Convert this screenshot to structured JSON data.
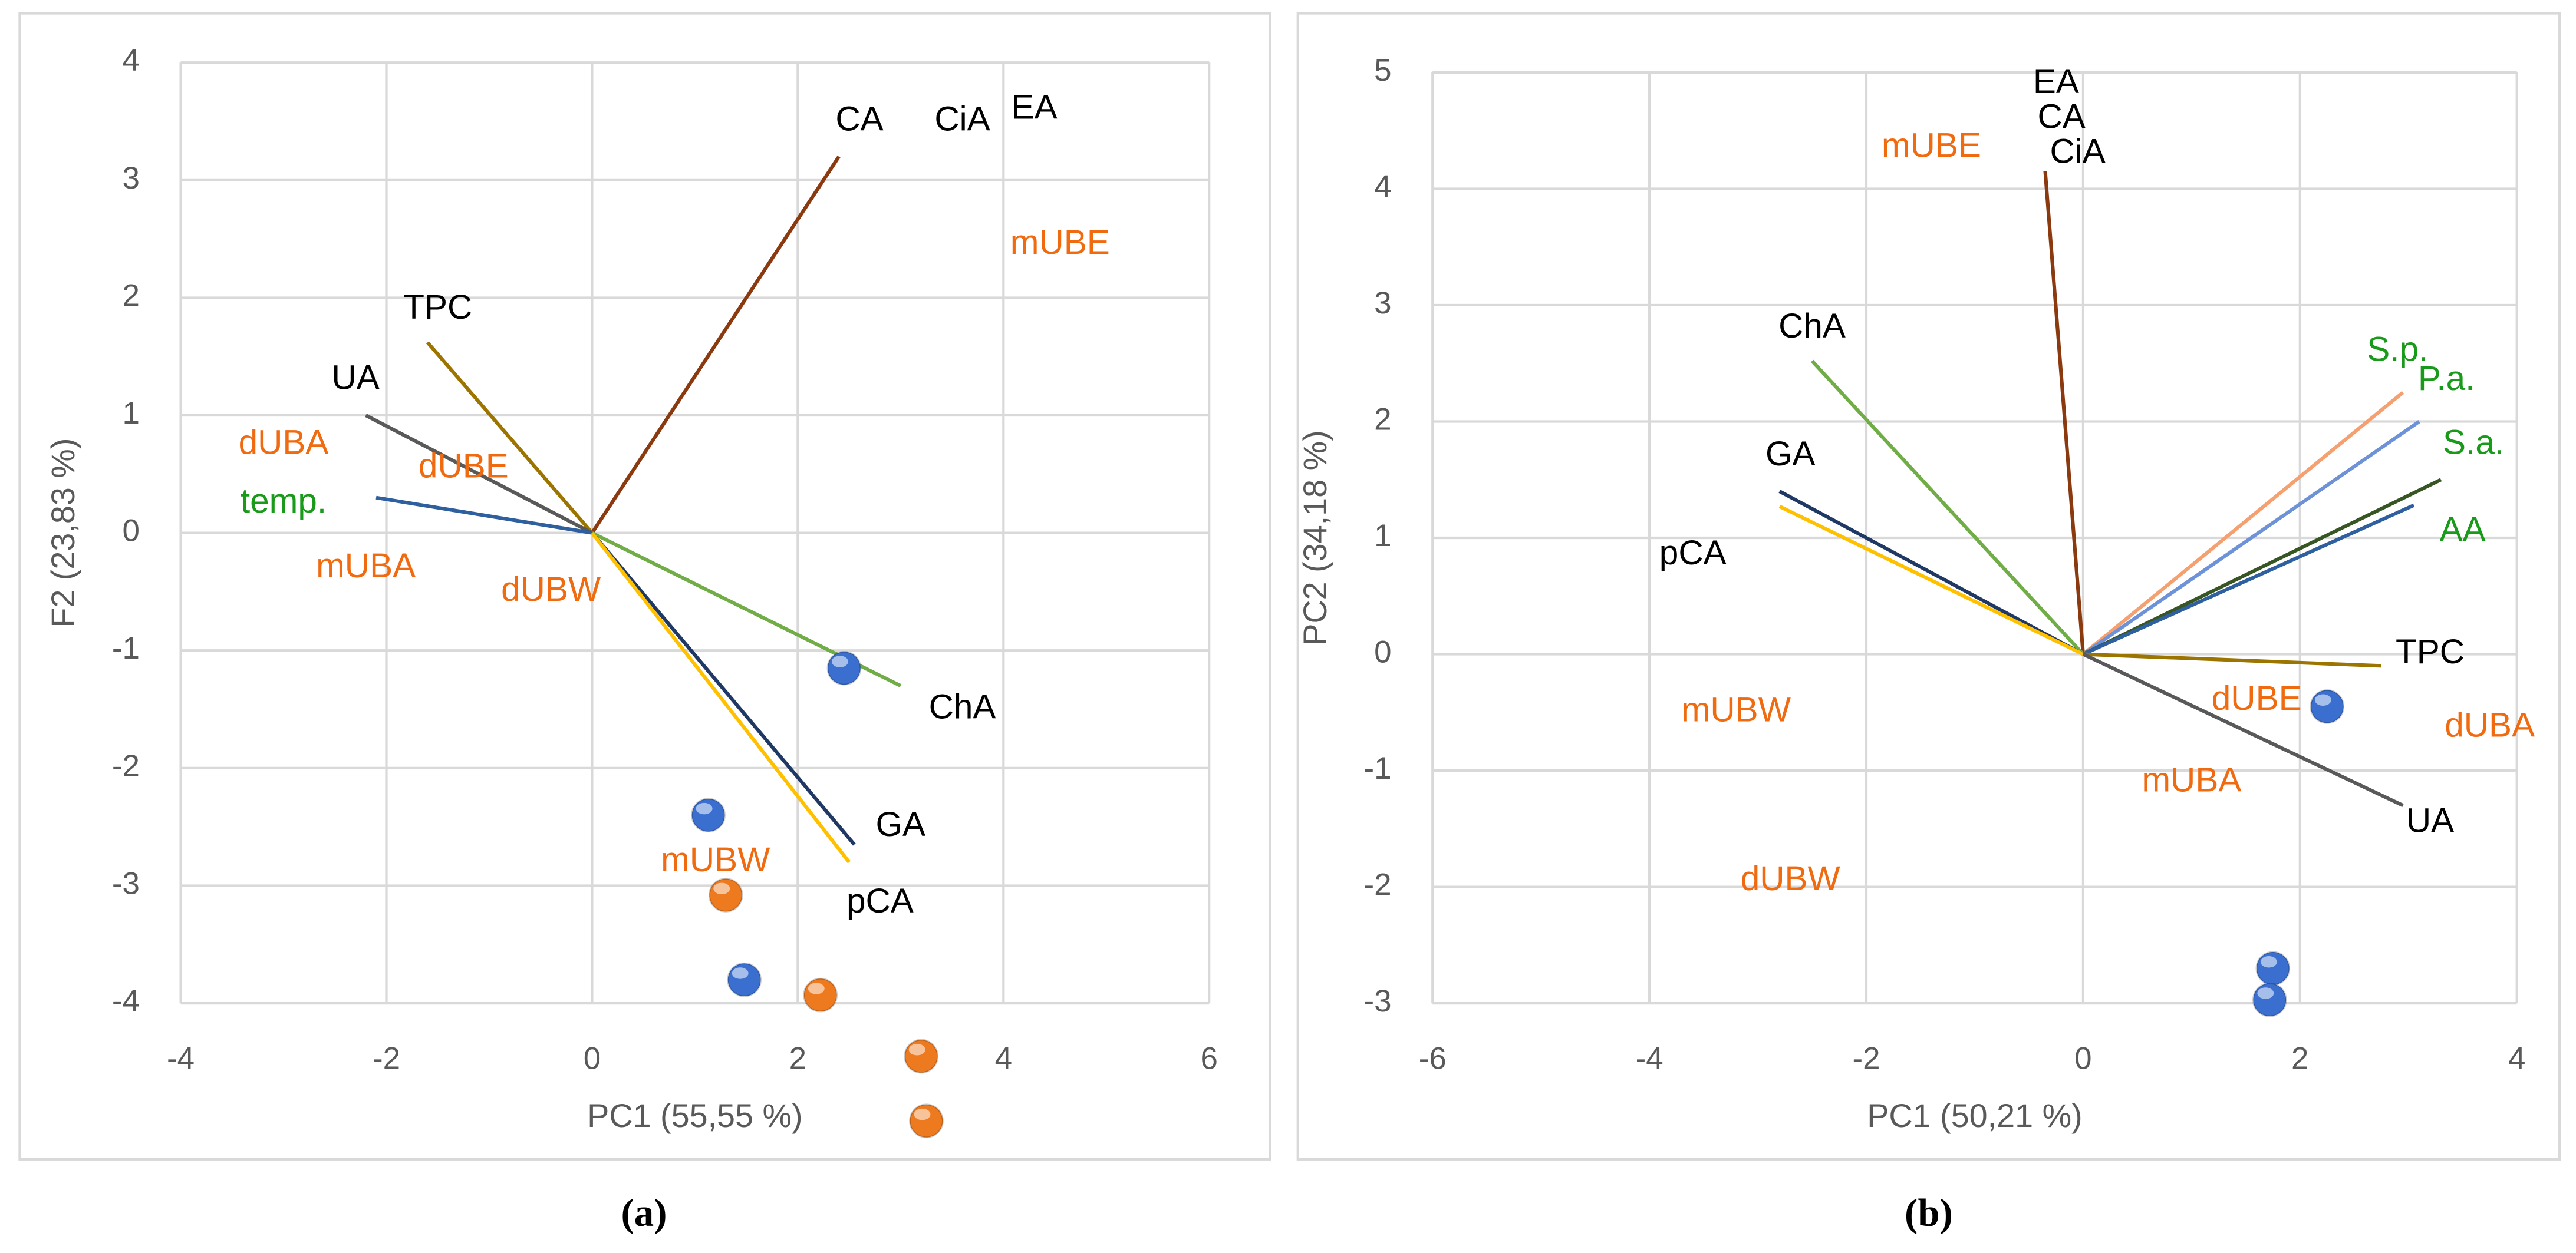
{
  "chart_data": [
    {
      "type": "biplot",
      "caption": "(a)",
      "xlabel": "PC1 (55,55 %)",
      "ylabel": "F2 (23,83 %)",
      "xlim": [
        -4,
        6
      ],
      "xticks": [
        -4,
        -2,
        0,
        2,
        4,
        6
      ],
      "ylim": [
        -4,
        4
      ],
      "yticks": [
        -4,
        -3,
        -2,
        -1,
        0,
        1,
        2,
        3,
        4
      ],
      "grid": true,
      "vectors": [
        {
          "x": 2.4,
          "y": 3.2,
          "color": "#8b3a0f"
        },
        {
          "x": -1.6,
          "y": 1.62,
          "color": "#9c7400"
        },
        {
          "x": -2.2,
          "y": 1.0,
          "color": "#595959"
        },
        {
          "x": -2.1,
          "y": 0.3,
          "color": "#2e5f9e"
        },
        {
          "x": 3.0,
          "y": -1.3,
          "color": "#70ad47"
        },
        {
          "x": 2.55,
          "y": -2.65,
          "color": "#203864"
        },
        {
          "x": 2.5,
          "y": -2.8,
          "color": "#ffc000"
        }
      ],
      "labels": [
        {
          "text": "CA",
          "x": 2.6,
          "y": 3.5,
          "color": "#000000"
        },
        {
          "text": "CiA",
          "x": 3.6,
          "y": 3.5,
          "color": "#000000"
        },
        {
          "text": "EA",
          "x": 4.3,
          "y": 3.6,
          "color": "#000000"
        },
        {
          "text": "mUBE",
          "x": 4.55,
          "y": 2.45,
          "color": "#f06a10"
        },
        {
          "text": "TPC",
          "x": -1.5,
          "y": 1.9,
          "color": "#000000"
        },
        {
          "text": "UA",
          "x": -2.3,
          "y": 1.3,
          "color": "#000000"
        },
        {
          "text": "dUBA",
          "x": -3.0,
          "y": 0.75,
          "color": "#f06a10"
        },
        {
          "text": "dUBE",
          "x": -1.25,
          "y": 0.55,
          "color": "#f06a10"
        },
        {
          "text": "temp.",
          "x": -3.0,
          "y": 0.25,
          "color": "#1a9a1a"
        },
        {
          "text": "mUBA",
          "x": -2.2,
          "y": -0.3,
          "color": "#f06a10"
        },
        {
          "text": "dUBW",
          "x": -0.4,
          "y": -0.5,
          "color": "#f06a10"
        },
        {
          "text": "ChA",
          "x": 3.6,
          "y": -1.5,
          "color": "#000000"
        },
        {
          "text": "GA",
          "x": 3.0,
          "y": -2.5,
          "color": "#000000"
        },
        {
          "text": "mUBW",
          "x": 1.2,
          "y": -2.8,
          "color": "#f06a10"
        },
        {
          "text": "pCA",
          "x": 2.8,
          "y": -3.15,
          "color": "#000000"
        }
      ],
      "points": [
        {
          "x": 2.45,
          "y": -1.15,
          "color": "#3a6fd0"
        },
        {
          "x": 1.13,
          "y": -2.4,
          "color": "#3a6fd0"
        },
        {
          "x": 1.48,
          "y": -3.8,
          "color": "#3a6fd0"
        },
        {
          "x": 1.3,
          "y": -3.08,
          "color": "#ee7a20"
        },
        {
          "x": 2.22,
          "y": -3.93,
          "color": "#ee7a20"
        },
        {
          "x": 3.2,
          "y": -4.45,
          "color": "#ee7a20"
        },
        {
          "x": 3.25,
          "y": -5.0,
          "color": "#ee7a20"
        }
      ]
    },
    {
      "type": "biplot",
      "caption": "(b)",
      "xlabel": "PC1 (50,21 %)",
      "ylabel": "PC2 (34,18 %)",
      "xlim": [
        -6,
        4
      ],
      "xticks": [
        -6,
        -4,
        -2,
        0,
        2,
        4
      ],
      "ylim": [
        -3,
        5
      ],
      "yticks": [
        -3,
        -2,
        -1,
        0,
        1,
        2,
        3,
        4,
        5
      ],
      "grid": true,
      "vectors": [
        {
          "x": -0.35,
          "y": 4.15,
          "color": "#8b3a0f"
        },
        {
          "x": -2.5,
          "y": 2.52,
          "color": "#70ad47"
        },
        {
          "x": -2.8,
          "y": 1.4,
          "color": "#203864"
        },
        {
          "x": -2.8,
          "y": 1.27,
          "color": "#ffc000"
        },
        {
          "x": 2.95,
          "y": 2.25,
          "color": "#f4a070"
        },
        {
          "x": 3.1,
          "y": 2.0,
          "color": "#6e92d8"
        },
        {
          "x": 3.3,
          "y": 1.5,
          "color": "#375623"
        },
        {
          "x": 3.05,
          "y": 1.28,
          "color": "#2e5f9e"
        },
        {
          "x": 2.75,
          "y": -0.1,
          "color": "#9c7400"
        },
        {
          "x": 2.95,
          "y": -1.3,
          "color": "#595959"
        }
      ],
      "labels": [
        {
          "text": "EA",
          "x": -0.25,
          "y": 4.9,
          "color": "#000000"
        },
        {
          "text": "CA",
          "x": -0.2,
          "y": 4.6,
          "color": "#000000"
        },
        {
          "text": "CiA",
          "x": -0.05,
          "y": 4.3,
          "color": "#000000"
        },
        {
          "text": "mUBE",
          "x": -1.4,
          "y": 4.35,
          "color": "#f06a10"
        },
        {
          "text": "ChA",
          "x": -2.5,
          "y": 2.8,
          "color": "#000000"
        },
        {
          "text": "GA",
          "x": -2.7,
          "y": 1.7,
          "color": "#000000"
        },
        {
          "text": "pCA",
          "x": -3.6,
          "y": 0.85,
          "color": "#000000"
        },
        {
          "text": "S.p.",
          "x": 2.9,
          "y": 2.6,
          "color": "#1a9a1a"
        },
        {
          "text": "P.a.",
          "x": 3.35,
          "y": 2.35,
          "color": "#1a9a1a"
        },
        {
          "text": "S.a.",
          "x": 3.6,
          "y": 1.8,
          "color": "#1a9a1a"
        },
        {
          "text": "AA",
          "x": 3.5,
          "y": 1.05,
          "color": "#1a9a1a"
        },
        {
          "text": "TPC",
          "x": 3.2,
          "y": 0.0,
          "color": "#000000"
        },
        {
          "text": "dUBE",
          "x": 1.6,
          "y": -0.4,
          "color": "#f06a10"
        },
        {
          "text": "dUBA",
          "x": 3.75,
          "y": -0.63,
          "color": "#f06a10"
        },
        {
          "text": "mUBW",
          "x": -3.2,
          "y": -0.5,
          "color": "#f06a10"
        },
        {
          "text": "mUBA",
          "x": 1.0,
          "y": -1.1,
          "color": "#f06a10"
        },
        {
          "text": "UA",
          "x": 3.2,
          "y": -1.45,
          "color": "#000000"
        },
        {
          "text": "dUBW",
          "x": -2.7,
          "y": -1.95,
          "color": "#f06a10"
        }
      ],
      "points": [
        {
          "x": 2.25,
          "y": -0.45,
          "color": "#3a6fd0"
        },
        {
          "x": 1.75,
          "y": -2.7,
          "color": "#3a6fd0"
        },
        {
          "x": 1.72,
          "y": -2.97,
          "color": "#3a6fd0"
        }
      ]
    }
  ]
}
